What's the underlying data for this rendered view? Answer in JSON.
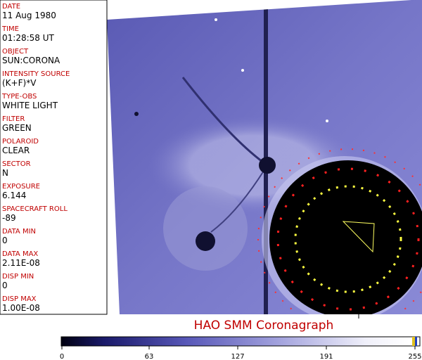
{
  "sidebar": [
    {
      "label": "DATE",
      "value": "11 Aug 1980"
    },
    {
      "label": "TIME",
      "value": "01:28:58 UT"
    },
    {
      "label": "OBJECT",
      "value": "SUN:CORONA"
    },
    {
      "label": "INTENSITY SOURCE",
      "value": "(K+F)*V"
    },
    {
      "label": "TYPE-OBS",
      "value": "WHITE LIGHT"
    },
    {
      "label": "FILTER",
      "value": "GREEN"
    },
    {
      "label": "POLAROID",
      "value": "CLEAR"
    },
    {
      "label": "SECTOR",
      "value": "N"
    },
    {
      "label": "EXPOSURE",
      "value": "6.144"
    },
    {
      "label": "SPACECRAFT ROLL",
      "value": "-89"
    },
    {
      "label": "DATA MIN",
      "value": "0"
    },
    {
      "label": "DATA MAX",
      "value": "2.11E-08"
    },
    {
      "label": "DISP MIN",
      "value": "0"
    },
    {
      "label": "DISP MAX",
      "value": "1.00E-08"
    }
  ],
  "title": "HAO  SMM Coronagraph",
  "colorbar": {
    "lim": [
      0,
      255
    ],
    "ticks": [
      0,
      63,
      127,
      191,
      255
    ]
  }
}
